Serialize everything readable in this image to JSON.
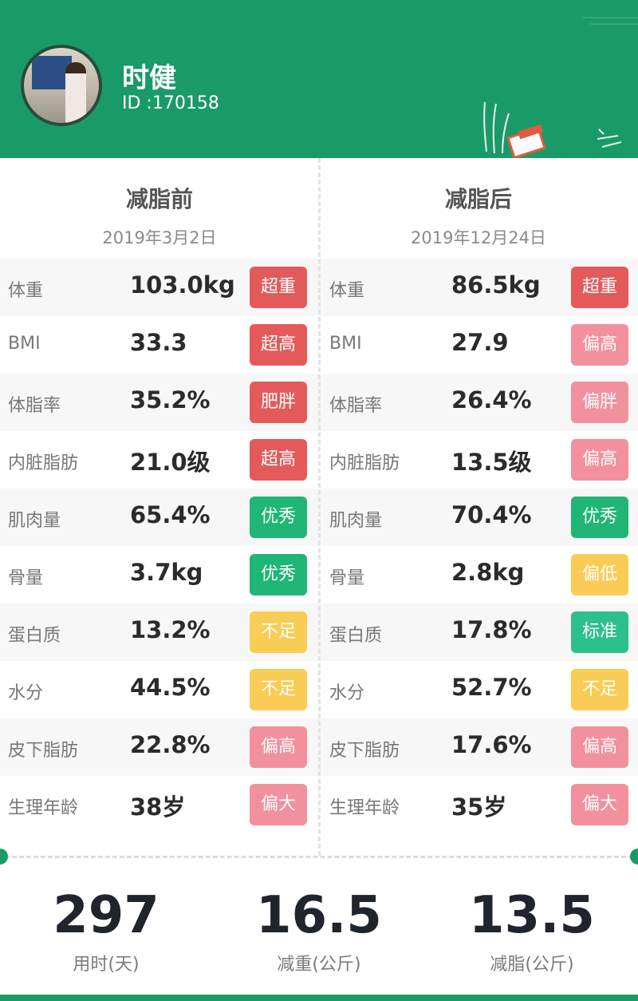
{
  "profile": {
    "name": "时健",
    "id_text": "ID :170158"
  },
  "before": {
    "title": "减脂前",
    "date": "2019年3月2日"
  },
  "after": {
    "title": "减脂后",
    "date": "2019年12月24日"
  },
  "status_colors": {
    "red": "#e45a5a",
    "pink": "#f2909e",
    "green": "#1fb676",
    "yellow": "#f9cd55",
    "teal": "#2cc08a"
  },
  "metrics": [
    {
      "label": "体重",
      "before": {
        "value": "103.0kg",
        "status": "超重",
        "color": "red"
      },
      "after": {
        "value": "86.5kg",
        "status": "超重",
        "color": "red"
      }
    },
    {
      "label": "BMI",
      "before": {
        "value": "33.3",
        "status": "超高",
        "color": "red"
      },
      "after": {
        "value": "27.9",
        "status": "偏高",
        "color": "pink"
      }
    },
    {
      "label": "体脂率",
      "before": {
        "value": "35.2%",
        "status": "肥胖",
        "color": "red"
      },
      "after": {
        "value": "26.4%",
        "status": "偏胖",
        "color": "pink"
      }
    },
    {
      "label": "内脏脂肪",
      "before": {
        "value": "21.0级",
        "status": "超高",
        "color": "red"
      },
      "after": {
        "value": "13.5级",
        "status": "偏高",
        "color": "pink"
      }
    },
    {
      "label": "肌肉量",
      "before": {
        "value": "65.4%",
        "status": "优秀",
        "color": "green"
      },
      "after": {
        "value": "70.4%",
        "status": "优秀",
        "color": "green"
      }
    },
    {
      "label": "骨量",
      "before": {
        "value": "3.7kg",
        "status": "优秀",
        "color": "green"
      },
      "after": {
        "value": "2.8kg",
        "status": "偏低",
        "color": "yellow"
      }
    },
    {
      "label": "蛋白质",
      "before": {
        "value": "13.2%",
        "status": "不足",
        "color": "yellow"
      },
      "after": {
        "value": "17.8%",
        "status": "标准",
        "color": "teal"
      }
    },
    {
      "label": "水分",
      "before": {
        "value": "44.5%",
        "status": "不足",
        "color": "yellow"
      },
      "after": {
        "value": "52.7%",
        "status": "不足",
        "color": "yellow"
      }
    },
    {
      "label": "皮下脂肪",
      "before": {
        "value": "22.8%",
        "status": "偏高",
        "color": "pink"
      },
      "after": {
        "value": "17.6%",
        "status": "偏高",
        "color": "pink"
      }
    },
    {
      "label": "生理年龄",
      "before": {
        "value": "38岁",
        "status": "偏大",
        "color": "pink"
      },
      "after": {
        "value": "35岁",
        "status": "偏大",
        "color": "pink"
      }
    }
  ],
  "summary": [
    {
      "value": "297",
      "caption": "用时(天)"
    },
    {
      "value": "16.5",
      "caption": "减重(公斤)"
    },
    {
      "value": "13.5",
      "caption": "减脂(公斤)"
    }
  ]
}
